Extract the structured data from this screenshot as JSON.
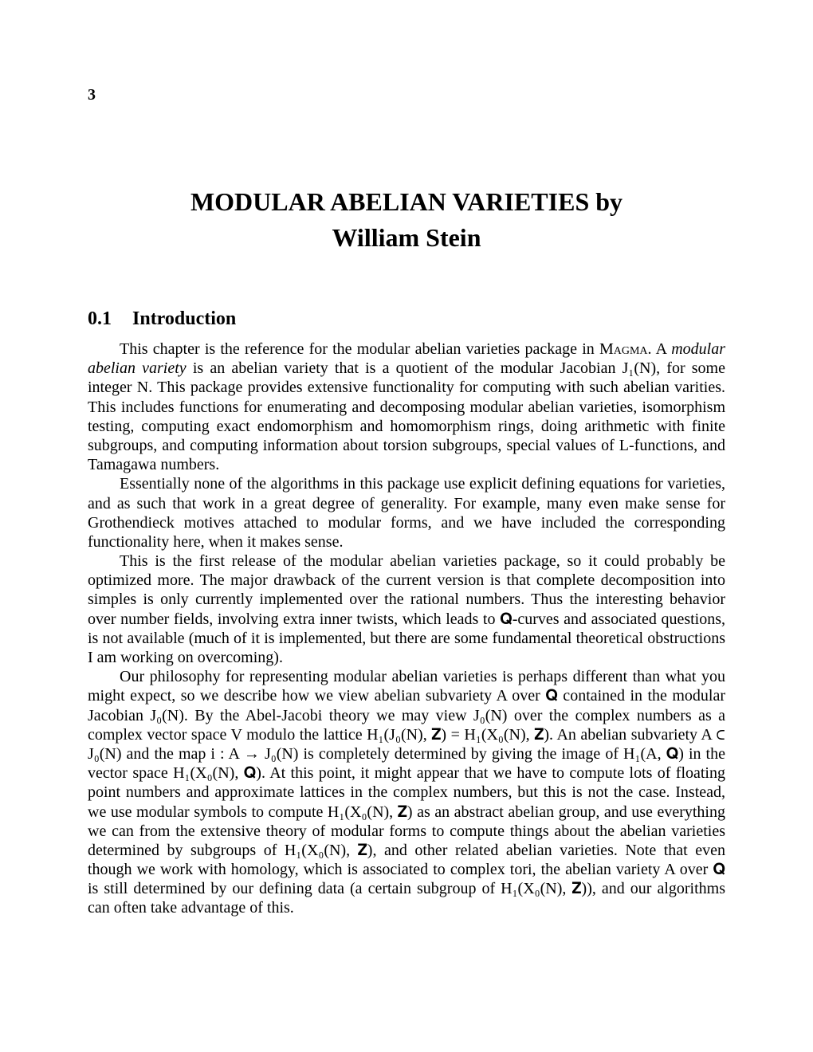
{
  "pageNumber": "3",
  "title": "MODULAR ABELIAN VARIETIES  by",
  "author": "William Stein",
  "section": {
    "number": "0.1",
    "title": "Introduction"
  },
  "paragraphs": {
    "p1a": "This chapter is the reference for the modular abelian varieties package in ",
    "p1magma": "Magma",
    "p1b": ". A ",
    "p1c": "modular abelian variety",
    "p1d": " is an abelian variety that is a quotient of the modular Jacobian J₁(N), for some integer N. This package provides extensive functionality for computing with such abelian varities. This includes functions for enumerating and decomposing modular abelian varieties, isomorphism testing, computing exact endomorphism and homomorphism rings, doing arithmetic with finite subgroups, and computing information about torsion subgroups, special values of L-functions, and Tamagawa numbers.",
    "p2": "Essentially none of the algorithms in this package use explicit defining equations for varieties, and as such that work in a great degree of generality. For example, many even make sense for Grothendieck motives attached to modular forms, and we have included the corresponding functionality here, when it makes sense.",
    "p3": "This is the first release of the modular abelian varieties package, so it could probably be optimized more. The major drawback of the current version is that complete decomposition into simples is only currently implemented over the rational numbers. Thus the interesting behavior over number fields, involving extra inner twists, which leads to 𝐐-curves and associated questions, is not available (much of it is implemented, but there are some fundamental theoretical obstructions I am working on overcoming).",
    "p4": "Our philosophy for representing modular abelian varieties is perhaps different than what you might expect, so we describe how we view abelian subvariety A over 𝐐 contained in the modular Jacobian J₀(N). By the Abel-Jacobi theory we may view J₀(N) over the complex numbers as a complex vector space V modulo the lattice H₁(J₀(N), 𝐙) = H₁(X₀(N), 𝐙). An abelian subvariety A ⊂ J₀(N) and the map i : A → J₀(N) is completely determined by giving the image of H₁(A, 𝐐) in the vector space H₁(X₀(N), 𝐐). At this point, it might appear that we have to compute lots of floating point numbers and approximate lattices in the complex numbers, but this is not the case. Instead, we use modular symbols to compute H₁(X₀(N), 𝐙) as an abstract abelian group, and use everything we can from the extensive theory of modular forms to compute things about the abelian varieties determined by subgroups of H₁(X₀(N), 𝐙), and other related abelian varieties. Note that even though we work with homology, which is associated to complex tori, the abelian variety A over 𝐐 is still determined by our defining data (a certain subgroup of H₁(X₀(N), 𝐙)), and our algorithms can often take advantage of this."
  }
}
